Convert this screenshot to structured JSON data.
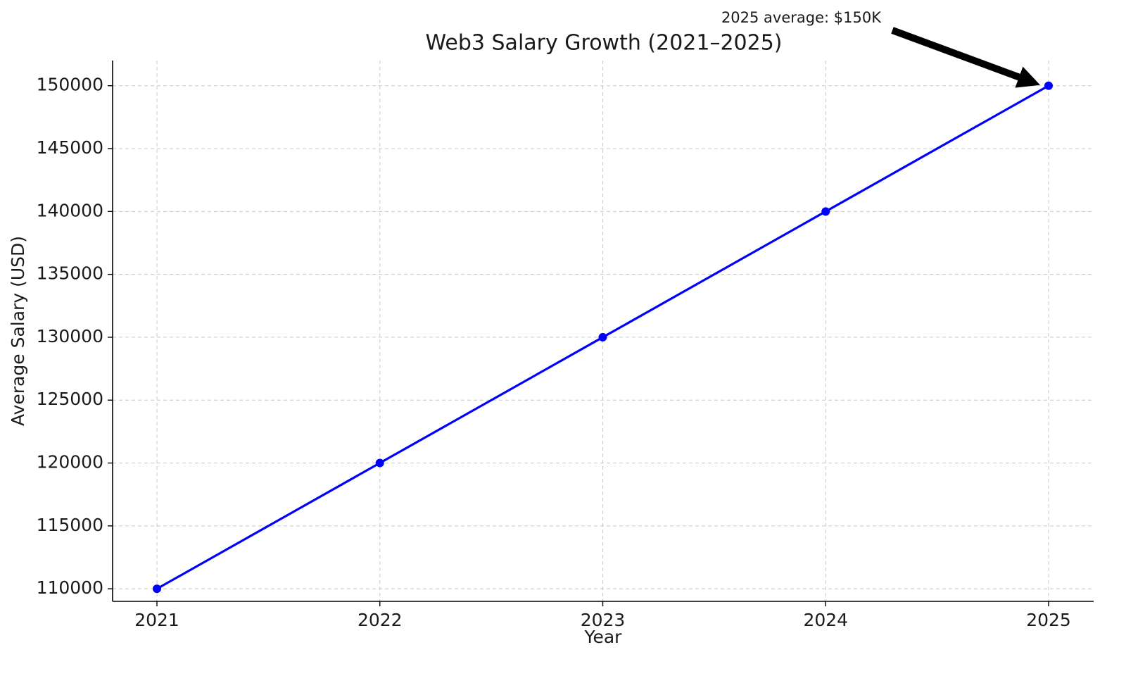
{
  "chart_data": {
    "type": "line",
    "title": "Web3 Salary Growth (2021–2025)",
    "xlabel": "Year",
    "ylabel": "Average Salary (USD)",
    "categories": [
      "2021",
      "2022",
      "2023",
      "2024",
      "2025"
    ],
    "x_tick_labels": [
      "2021",
      "2022",
      "2023",
      "2024",
      "2025"
    ],
    "y_tick_labels": [
      "110000",
      "115000",
      "120000",
      "125000",
      "130000",
      "135000",
      "140000",
      "145000",
      "150000"
    ],
    "y_ticks": [
      110000,
      115000,
      120000,
      125000,
      130000,
      135000,
      140000,
      145000,
      150000
    ],
    "ylim": [
      109000,
      152000
    ],
    "grid": true,
    "series": [
      {
        "values": [
          110000,
          120000,
          130000,
          140000,
          150000
        ],
        "color": "#0000ff",
        "marker": "circle"
      }
    ],
    "annotation": {
      "text": "2025 average: $150K",
      "target_category": "2025",
      "target_value": 150000,
      "arrow_color": "#000000"
    }
  }
}
